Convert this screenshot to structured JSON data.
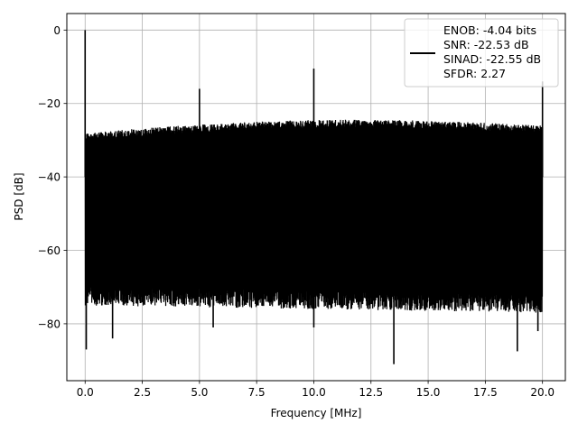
{
  "chart_data": {
    "type": "line",
    "xlabel": "Frequency [MHz]",
    "ylabel": "PSD [dB]",
    "xlim": [
      -0.8,
      21.0
    ],
    "ylim": [
      -95.5,
      4.5
    ],
    "xticks": [
      0.0,
      2.5,
      5.0,
      7.5,
      10.0,
      12.5,
      15.0,
      17.5,
      20.0
    ],
    "xtick_labels": [
      "0.0",
      "2.5",
      "5.0",
      "7.5",
      "10.0",
      "12.5",
      "15.0",
      "17.5",
      "20.0"
    ],
    "yticks": [
      0,
      -20,
      -40,
      -60,
      -80
    ],
    "ytick_labels": [
      "0",
      "−20",
      "−40",
      "−60",
      "−80"
    ],
    "grid": true,
    "legend_position": "top-right",
    "series": [
      {
        "name": "ENOB: -4.04 bits\nSNR: -22.53 dB\nSINAD: -22.55 dB\nSFDR: 2.27",
        "color": "#000000",
        "noise_band": {
          "x_range": [
            0.0,
            20.0
          ],
          "upper_envelope_db": [
            -28,
            -26
          ],
          "lower_envelope_db": [
            -70,
            -72
          ]
        },
        "peaks": [
          {
            "x": 0.0,
            "y": 0
          },
          {
            "x": 5.0,
            "y": -16
          },
          {
            "x": 10.0,
            "y": -10.5
          },
          {
            "x": 20.0,
            "y": -14
          }
        ],
        "dips": [
          {
            "x": 0.05,
            "y": -87
          },
          {
            "x": 1.2,
            "y": -84
          },
          {
            "x": 5.6,
            "y": -81
          },
          {
            "x": 10.0,
            "y": -81
          },
          {
            "x": 13.5,
            "y": -91
          },
          {
            "x": 18.9,
            "y": -87.5
          },
          {
            "x": 19.8,
            "y": -82
          }
        ]
      }
    ],
    "legend_lines": [
      "ENOB: -4.04 bits",
      "SNR: -22.53 dB",
      "SINAD: -22.55 dB",
      "SFDR: 2.27"
    ]
  }
}
